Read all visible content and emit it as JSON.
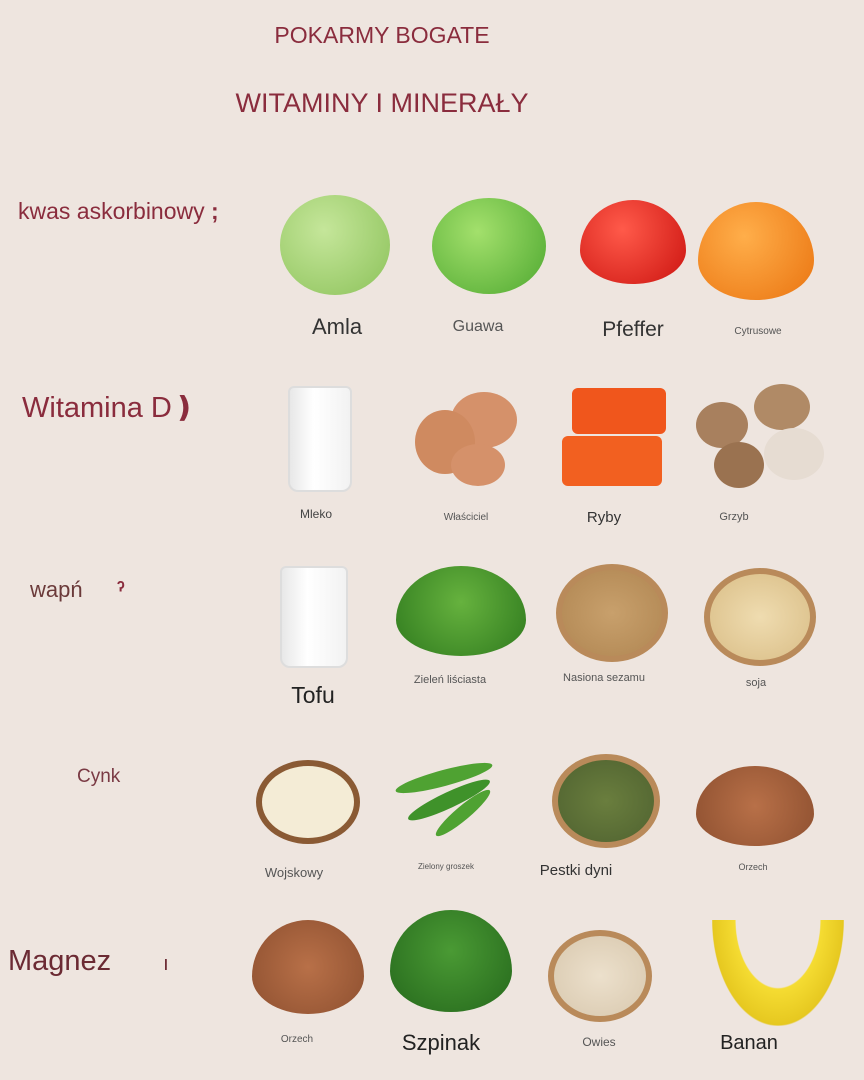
{
  "title_line1": "POKARMY BOGATE",
  "title_line2": "WITAMINY I MINERAŁY",
  "rows": [
    {
      "label": "kwas askorbinowy",
      "marker": ";",
      "items": [
        {
          "label": "Amla",
          "icon": "amla-icon",
          "color": "#9ccf6a"
        },
        {
          "label": "Guawa",
          "icon": "guava-icon",
          "color": "#6cc244"
        },
        {
          "label": "Pfeffer",
          "icon": "red-pepper-icon",
          "color": "#e0201c"
        },
        {
          "label": "Cytrusowe",
          "icon": "orange-pepper-icon",
          "color": "#f48a1c"
        }
      ]
    },
    {
      "label": "Witamina D",
      "marker": "❫",
      "items": [
        {
          "label": "Mleko",
          "icon": "milk-glass-icon",
          "color": "#ffffff"
        },
        {
          "label": "Właściciel",
          "icon": "eggs-icon",
          "color": "#d89468"
        },
        {
          "label": "Ryby",
          "icon": "fish-icon",
          "color": "#f0561c"
        },
        {
          "label": "Grzyb",
          "icon": "mushrooms-icon",
          "color": "#b08a66"
        }
      ]
    },
    {
      "label": "wapń",
      "marker": "ˀ",
      "items": [
        {
          "label": "Tofu",
          "icon": "milk-glass-icon",
          "color": "#ffffff"
        },
        {
          "label": "Zieleń liściasta",
          "icon": "leafy-greens-icon",
          "color": "#3f8f2a"
        },
        {
          "label": "Nasiona sezamu",
          "icon": "sesame-bowl-icon",
          "color": "#c69a64"
        },
        {
          "label": "soja",
          "icon": "soy-bowl-icon",
          "color": "#e6cf9e"
        }
      ]
    },
    {
      "label": "Cynk",
      "marker": "",
      "items": [
        {
          "label": "Wojskowy",
          "icon": "tofu-bowl-icon",
          "color": "#f4ecd6"
        },
        {
          "label": "Zielony groszek",
          "icon": "green-peas-icon",
          "color": "#4fa232"
        },
        {
          "label": "Pestki dyni",
          "icon": "pumpkin-seeds-bowl-icon",
          "color": "#5b6e34"
        },
        {
          "label": "Orzech",
          "icon": "nuts-icon",
          "color": "#a8613a"
        }
      ]
    },
    {
      "label": "Magnez",
      "marker": "ı",
      "items": [
        {
          "label": "Orzech",
          "icon": "nuts-icon",
          "color": "#a8613a"
        },
        {
          "label": "Szpinak",
          "icon": "spinach-icon",
          "color": "#2f7a26"
        },
        {
          "label": "Owies",
          "icon": "oats-bowl-icon",
          "color": "#e2d4bf"
        },
        {
          "label": "Banan",
          "icon": "banana-icon",
          "color": "#f5dc32"
        }
      ]
    }
  ]
}
